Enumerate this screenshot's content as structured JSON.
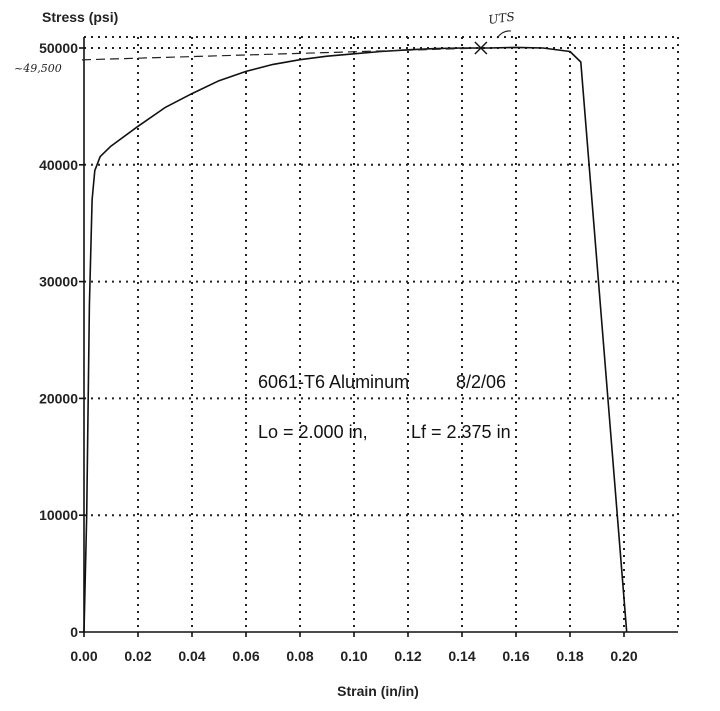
{
  "chart_data": {
    "type": "line",
    "ylabel": "Stress (psi)",
    "xlabel": "Strain (in/in)",
    "xlim": [
      0,
      0.22
    ],
    "ylim": [
      0,
      50000
    ],
    "x_ticks": [
      "0.00",
      "0.02",
      "0.04",
      "0.06",
      "0.08",
      "0.10",
      "0.12",
      "0.14",
      "0.16",
      "0.18",
      "0.20"
    ],
    "x_tick_values": [
      0,
      0.02,
      0.04,
      0.06,
      0.08,
      0.1,
      0.12,
      0.14,
      0.16,
      0.18,
      0.2
    ],
    "y_ticks": [
      "0",
      "10000",
      "20000",
      "30000",
      "40000",
      "50000"
    ],
    "y_tick_values": [
      0,
      10000,
      20000,
      30000,
      40000,
      50000
    ],
    "grid": true,
    "series": [
      {
        "x": [
          0.0,
          0.001,
          0.002,
          0.003,
          0.004,
          0.006,
          0.01,
          0.02,
          0.03,
          0.04,
          0.05,
          0.06,
          0.07,
          0.08,
          0.09,
          0.1,
          0.11,
          0.12,
          0.13,
          0.14,
          0.15,
          0.16,
          0.17,
          0.18,
          0.184,
          0.201
        ],
        "y": [
          0,
          10000,
          28000,
          37000,
          39500,
          40700,
          41600,
          43300,
          44900,
          46100,
          47200,
          48000,
          48600,
          49000,
          49300,
          49500,
          49700,
          49850,
          49950,
          50000,
          50000,
          50050,
          50000,
          49700,
          48800,
          0
        ]
      }
    ],
    "annotations": {
      "line1": "6061-T6 Aluminum",
      "date": "8/2/06",
      "line2_left": "Lo = 2.000 in,",
      "line2_right": "Lf = 2.375 in",
      "uts_label": "UTS",
      "uts_x": 0.147,
      "uts_y": 50000,
      "stress_mark_label": "~49,500",
      "stress_mark_value": 49500
    }
  }
}
